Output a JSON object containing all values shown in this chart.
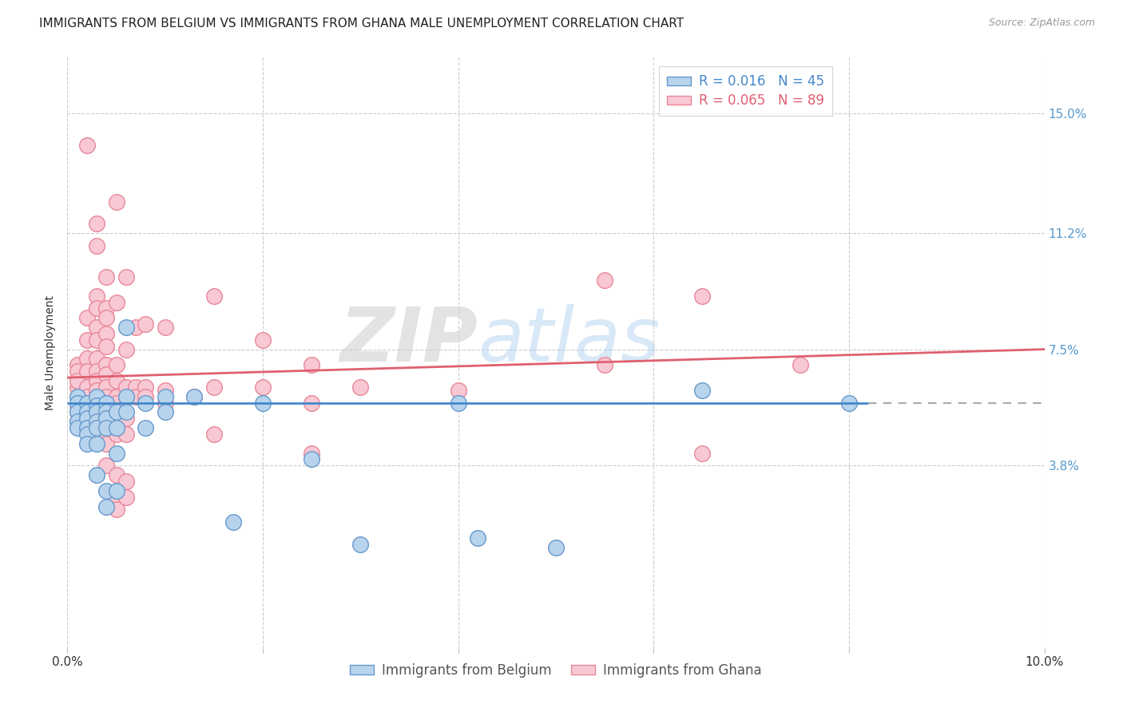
{
  "title": "IMMIGRANTS FROM BELGIUM VS IMMIGRANTS FROM GHANA MALE UNEMPLOYMENT CORRELATION CHART",
  "source": "Source: ZipAtlas.com",
  "ylabel": "Male Unemployment",
  "x_min": 0.0,
  "x_max": 0.1,
  "y_min": -0.02,
  "y_max": 0.168,
  "y_tick_labels_right": [
    "3.8%",
    "7.5%",
    "11.2%",
    "15.0%"
  ],
  "y_tick_vals_right": [
    0.038,
    0.075,
    0.112,
    0.15
  ],
  "watermark_zip": "ZIP",
  "watermark_atlas": "atlas",
  "belgium_color": "#b8d4ec",
  "belgium_edge": "#6699cc",
  "ghana_color": "#f8c8d4",
  "ghana_edge": "#e88898",
  "belgium_line_color": "#4488cc",
  "ghana_line_color": "#e06070",
  "grid_color": "#cccccc",
  "background_color": "#ffffff",
  "title_fontsize": 11,
  "axis_label_fontsize": 10,
  "tick_fontsize": 11,
  "belgium_scatter": [
    [
      0.001,
      0.06
    ],
    [
      0.001,
      0.058
    ],
    [
      0.001,
      0.055
    ],
    [
      0.001,
      0.052
    ],
    [
      0.001,
      0.05
    ],
    [
      0.002,
      0.058
    ],
    [
      0.002,
      0.055
    ],
    [
      0.002,
      0.053
    ],
    [
      0.002,
      0.05
    ],
    [
      0.002,
      0.048
    ],
    [
      0.002,
      0.045
    ],
    [
      0.003,
      0.06
    ],
    [
      0.003,
      0.057
    ],
    [
      0.003,
      0.055
    ],
    [
      0.003,
      0.052
    ],
    [
      0.003,
      0.05
    ],
    [
      0.003,
      0.045
    ],
    [
      0.003,
      0.035
    ],
    [
      0.004,
      0.058
    ],
    [
      0.004,
      0.055
    ],
    [
      0.004,
      0.053
    ],
    [
      0.004,
      0.05
    ],
    [
      0.004,
      0.03
    ],
    [
      0.004,
      0.025
    ],
    [
      0.005,
      0.055
    ],
    [
      0.005,
      0.05
    ],
    [
      0.005,
      0.042
    ],
    [
      0.005,
      0.03
    ],
    [
      0.006,
      0.082
    ],
    [
      0.006,
      0.06
    ],
    [
      0.006,
      0.055
    ],
    [
      0.008,
      0.058
    ],
    [
      0.008,
      0.05
    ],
    [
      0.01,
      0.06
    ],
    [
      0.01,
      0.055
    ],
    [
      0.013,
      0.06
    ],
    [
      0.017,
      0.02
    ],
    [
      0.02,
      0.058
    ],
    [
      0.025,
      0.04
    ],
    [
      0.03,
      0.013
    ],
    [
      0.04,
      0.058
    ],
    [
      0.042,
      0.015
    ],
    [
      0.05,
      0.012
    ],
    [
      0.065,
      0.062
    ],
    [
      0.08,
      0.058
    ]
  ],
  "ghana_scatter": [
    [
      0.001,
      0.07
    ],
    [
      0.001,
      0.068
    ],
    [
      0.001,
      0.063
    ],
    [
      0.001,
      0.06
    ],
    [
      0.001,
      0.057
    ],
    [
      0.001,
      0.055
    ],
    [
      0.001,
      0.052
    ],
    [
      0.001,
      0.065
    ],
    [
      0.002,
      0.14
    ],
    [
      0.002,
      0.085
    ],
    [
      0.002,
      0.078
    ],
    [
      0.002,
      0.072
    ],
    [
      0.002,
      0.068
    ],
    [
      0.002,
      0.063
    ],
    [
      0.002,
      0.06
    ],
    [
      0.002,
      0.058
    ],
    [
      0.002,
      0.055
    ],
    [
      0.002,
      0.052
    ],
    [
      0.003,
      0.115
    ],
    [
      0.003,
      0.108
    ],
    [
      0.003,
      0.092
    ],
    [
      0.003,
      0.088
    ],
    [
      0.003,
      0.082
    ],
    [
      0.003,
      0.078
    ],
    [
      0.003,
      0.072
    ],
    [
      0.003,
      0.068
    ],
    [
      0.003,
      0.065
    ],
    [
      0.003,
      0.062
    ],
    [
      0.003,
      0.06
    ],
    [
      0.003,
      0.058
    ],
    [
      0.003,
      0.052
    ],
    [
      0.003,
      0.048
    ],
    [
      0.004,
      0.098
    ],
    [
      0.004,
      0.088
    ],
    [
      0.004,
      0.085
    ],
    [
      0.004,
      0.08
    ],
    [
      0.004,
      0.076
    ],
    [
      0.004,
      0.07
    ],
    [
      0.004,
      0.067
    ],
    [
      0.004,
      0.063
    ],
    [
      0.004,
      0.06
    ],
    [
      0.004,
      0.058
    ],
    [
      0.004,
      0.053
    ],
    [
      0.004,
      0.045
    ],
    [
      0.004,
      0.038
    ],
    [
      0.005,
      0.122
    ],
    [
      0.005,
      0.09
    ],
    [
      0.005,
      0.07
    ],
    [
      0.005,
      0.065
    ],
    [
      0.005,
      0.06
    ],
    [
      0.005,
      0.058
    ],
    [
      0.005,
      0.048
    ],
    [
      0.005,
      0.035
    ],
    [
      0.005,
      0.03
    ],
    [
      0.005,
      0.027
    ],
    [
      0.005,
      0.024
    ],
    [
      0.006,
      0.098
    ],
    [
      0.006,
      0.075
    ],
    [
      0.006,
      0.063
    ],
    [
      0.006,
      0.06
    ],
    [
      0.006,
      0.053
    ],
    [
      0.006,
      0.048
    ],
    [
      0.006,
      0.033
    ],
    [
      0.006,
      0.028
    ],
    [
      0.007,
      0.082
    ],
    [
      0.007,
      0.063
    ],
    [
      0.007,
      0.06
    ],
    [
      0.008,
      0.083
    ],
    [
      0.008,
      0.063
    ],
    [
      0.008,
      0.06
    ],
    [
      0.01,
      0.082
    ],
    [
      0.01,
      0.062
    ],
    [
      0.01,
      0.058
    ],
    [
      0.013,
      0.06
    ],
    [
      0.015,
      0.092
    ],
    [
      0.015,
      0.063
    ],
    [
      0.015,
      0.048
    ],
    [
      0.02,
      0.078
    ],
    [
      0.02,
      0.063
    ],
    [
      0.025,
      0.07
    ],
    [
      0.025,
      0.058
    ],
    [
      0.025,
      0.042
    ],
    [
      0.03,
      0.063
    ],
    [
      0.04,
      0.062
    ],
    [
      0.055,
      0.097
    ],
    [
      0.055,
      0.07
    ],
    [
      0.065,
      0.092
    ],
    [
      0.065,
      0.042
    ],
    [
      0.075,
      0.07
    ]
  ]
}
